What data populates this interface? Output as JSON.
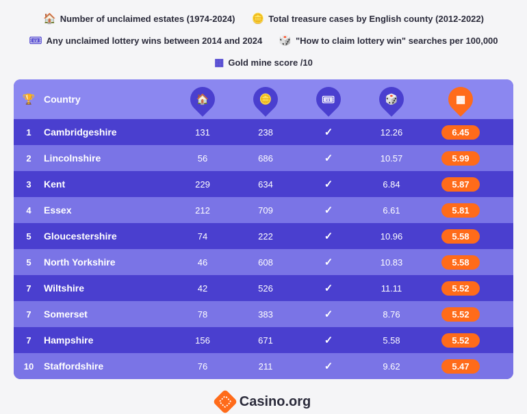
{
  "legend": [
    {
      "icon": "🏠",
      "label": "Number of unclaimed estates (1974-2024)"
    },
    {
      "icon": "🪙",
      "label": "Total treasure cases by English county (2012-2022)"
    },
    {
      "icon": "🎟",
      "label": "Any unclaimed lottery wins between 2014 and 2024"
    },
    {
      "icon": "🎲",
      "label": "\"How to claim lottery win\" searches per 100,000"
    },
    {
      "icon": "▦",
      "label": "Gold mine score /10"
    }
  ],
  "header": {
    "rank_icon": "🏆",
    "country_label": "Country",
    "col_icons": [
      "🏠",
      "🪙",
      "🎟",
      "🎲",
      "▦"
    ]
  },
  "rows": [
    {
      "rank": "1",
      "country": "Cambridgeshire",
      "estates": "131",
      "treasure": "238",
      "lottery": true,
      "searches": "12.26",
      "score": "6.45"
    },
    {
      "rank": "2",
      "country": "Lincolnshire",
      "estates": "56",
      "treasure": "686",
      "lottery": true,
      "searches": "10.57",
      "score": "5.99"
    },
    {
      "rank": "3",
      "country": "Kent",
      "estates": "229",
      "treasure": "634",
      "lottery": true,
      "searches": "6.84",
      "score": "5.87"
    },
    {
      "rank": "4",
      "country": "Essex",
      "estates": "212",
      "treasure": "709",
      "lottery": true,
      "searches": "6.61",
      "score": "5.81"
    },
    {
      "rank": "5",
      "country": "Gloucestershire",
      "estates": "74",
      "treasure": "222",
      "lottery": true,
      "searches": "10.96",
      "score": "5.58"
    },
    {
      "rank": "5",
      "country": "North Yorkshire",
      "estates": "46",
      "treasure": "608",
      "lottery": true,
      "searches": "10.83",
      "score": "5.58"
    },
    {
      "rank": "7",
      "country": "Wiltshire",
      "estates": "42",
      "treasure": "526",
      "lottery": true,
      "searches": "11.11",
      "score": "5.52"
    },
    {
      "rank": "7",
      "country": "Somerset",
      "estates": "78",
      "treasure": "383",
      "lottery": true,
      "searches": "8.76",
      "score": "5.52"
    },
    {
      "rank": "7",
      "country": "Hampshire",
      "estates": "156",
      "treasure": "671",
      "lottery": true,
      "searches": "5.58",
      "score": "5.52"
    },
    {
      "rank": "10",
      "country": "Staffordshire",
      "estates": "76",
      "treasure": "211",
      "lottery": true,
      "searches": "9.62",
      "score": "5.47"
    }
  ],
  "footer": {
    "brand": "Casino.org"
  },
  "colors": {
    "row_odd": "#4a3fcf",
    "row_even": "#7a74e6",
    "header_bg": "#8b87f0",
    "accent": "#ff6b1a",
    "text_dark": "#2a2a3a",
    "page_bg": "#f5f5f7"
  }
}
